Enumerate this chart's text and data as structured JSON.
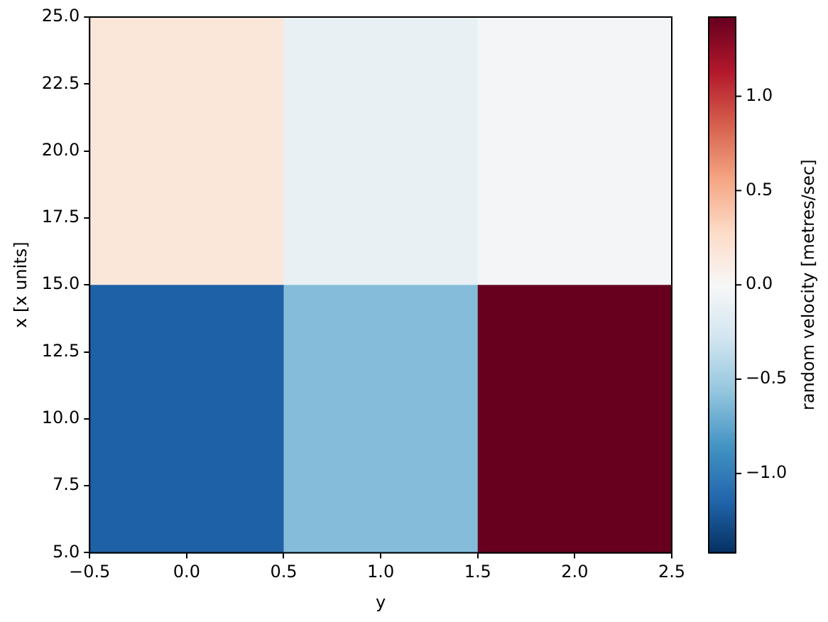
{
  "chart_data": {
    "type": "heatmap",
    "xlabel": "y",
    "ylabel": "x [x units]",
    "clabel": "random velocity [metres/sec]",
    "cells": [
      [
        0.17,
        -0.11,
        -0.03
      ],
      [
        -1.16,
        -0.62,
        1.42
      ]
    ],
    "clim": [
      -1.42,
      1.42
    ],
    "cticks": [
      {
        "value": -1.0,
        "label": "−1.0"
      },
      {
        "value": -0.5,
        "label": "−0.5"
      },
      {
        "value": 0,
        "label": "0.0"
      },
      {
        "value": 0.5,
        "label": "0.5"
      },
      {
        "value": 1.0,
        "label": "1.0"
      }
    ],
    "xlim": [
      -0.5,
      2.5
    ],
    "xticks": [
      {
        "value": -0.5,
        "label": "−0.5"
      },
      {
        "value": 0,
        "label": "0.0"
      },
      {
        "value": 0.5,
        "label": "0.5"
      },
      {
        "value": 1,
        "label": "1.0"
      },
      {
        "value": 1.5,
        "label": "1.5"
      },
      {
        "value": 2,
        "label": "2.0"
      },
      {
        "value": 2.5,
        "label": "2.5"
      }
    ],
    "ylim": [
      5,
      25
    ],
    "yticks": [
      {
        "value": 5,
        "label": "5.0"
      },
      {
        "value": 7.5,
        "label": "7.5"
      },
      {
        "value": 10,
        "label": "10.0"
      },
      {
        "value": 12.5,
        "label": "12.5"
      },
      {
        "value": 15,
        "label": "15.0"
      },
      {
        "value": 17.5,
        "label": "17.5"
      },
      {
        "value": 20,
        "label": "20.0"
      },
      {
        "value": 22.5,
        "label": "22.5"
      },
      {
        "value": 25,
        "label": "25.0"
      }
    ]
  }
}
